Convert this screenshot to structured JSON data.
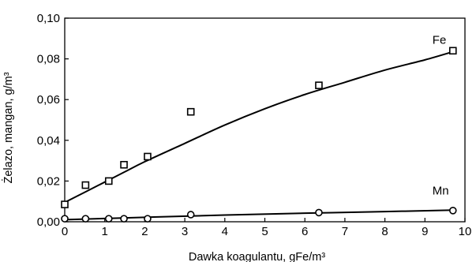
{
  "chart_data": {
    "type": "scatter",
    "xlabel": "Dawka koagulantu, gFe/m³",
    "ylabel": "Żelazo, mangan, g/m³",
    "xlim": [
      0,
      10
    ],
    "ylim": [
      0,
      0.1
    ],
    "x_ticks": [
      0,
      1,
      2,
      3,
      4,
      5,
      6,
      7,
      8,
      9,
      10
    ],
    "x_tick_labels": [
      "0",
      "1",
      "2",
      "3",
      "4",
      "5",
      "6",
      "7",
      "8",
      "9",
      "10"
    ],
    "y_ticks": [
      0,
      0.02,
      0.04,
      0.06,
      0.08,
      0.1
    ],
    "y_tick_labels": [
      "0,00",
      "0,02",
      "0,04",
      "0,06",
      "0,08",
      "0,10"
    ],
    "grid": false,
    "series": [
      {
        "name": "Fe",
        "marker": "square",
        "points": [
          {
            "x": 0.0,
            "y": 0.0085
          },
          {
            "x": 0.52,
            "y": 0.018
          },
          {
            "x": 1.1,
            "y": 0.02
          },
          {
            "x": 1.48,
            "y": 0.028
          },
          {
            "x": 2.07,
            "y": 0.032
          },
          {
            "x": 3.15,
            "y": 0.054
          },
          {
            "x": 6.35,
            "y": 0.067
          },
          {
            "x": 9.7,
            "y": 0.084
          }
        ],
        "fit_curve": [
          {
            "x": 0.0,
            "y": 0.0095
          },
          {
            "x": 0.5,
            "y": 0.0145
          },
          {
            "x": 1.0,
            "y": 0.0195
          },
          {
            "x": 1.5,
            "y": 0.0245
          },
          {
            "x": 2.0,
            "y": 0.0295
          },
          {
            "x": 3.0,
            "y": 0.0385
          },
          {
            "x": 4.0,
            "y": 0.0475
          },
          {
            "x": 5.0,
            "y": 0.0555
          },
          {
            "x": 6.0,
            "y": 0.0625
          },
          {
            "x": 7.0,
            "y": 0.0685
          },
          {
            "x": 8.0,
            "y": 0.0745
          },
          {
            "x": 9.0,
            "y": 0.0795
          },
          {
            "x": 9.7,
            "y": 0.0835
          }
        ]
      },
      {
        "name": "Mn",
        "marker": "circle",
        "points": [
          {
            "x": 0.0,
            "y": 0.0015
          },
          {
            "x": 0.52,
            "y": 0.0015
          },
          {
            "x": 1.1,
            "y": 0.0015
          },
          {
            "x": 1.48,
            "y": 0.0015
          },
          {
            "x": 2.07,
            "y": 0.0015
          },
          {
            "x": 3.15,
            "y": 0.0035
          },
          {
            "x": 6.35,
            "y": 0.0045
          },
          {
            "x": 9.7,
            "y": 0.0055
          }
        ],
        "fit_curve": [
          {
            "x": 0.0,
            "y": 0.001
          },
          {
            "x": 2.0,
            "y": 0.0022
          },
          {
            "x": 4.0,
            "y": 0.0033
          },
          {
            "x": 6.0,
            "y": 0.0042
          },
          {
            "x": 8.0,
            "y": 0.005
          },
          {
            "x": 9.7,
            "y": 0.0057
          }
        ]
      }
    ]
  }
}
